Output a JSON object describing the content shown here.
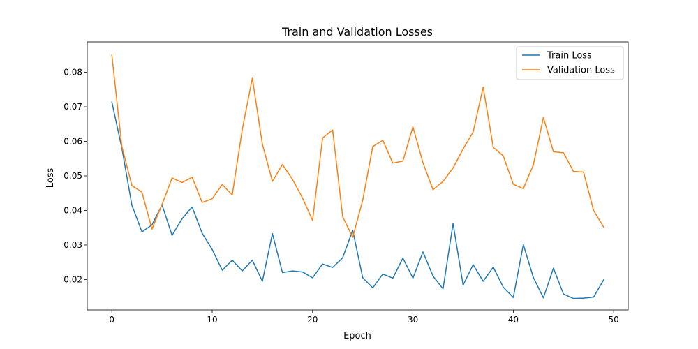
{
  "chart_data": {
    "type": "line",
    "title": "Train and Validation Losses",
    "xlabel": "Epoch",
    "ylabel": "Loss",
    "xlim": [
      -2.45,
      51.45
    ],
    "ylim": [
      0.0112,
      0.0888
    ],
    "xticks": [
      0,
      10,
      20,
      30,
      40,
      50
    ],
    "yticks": [
      0.02,
      0.03,
      0.04,
      0.05,
      0.06,
      0.07,
      0.08
    ],
    "xtick_labels": [
      "0",
      "10",
      "20",
      "30",
      "40",
      "50"
    ],
    "ytick_labels": [
      "0.02",
      "0.03",
      "0.04",
      "0.05",
      "0.06",
      "0.07",
      "0.08"
    ],
    "grid": false,
    "legend_position": "top-right",
    "x": [
      0,
      1,
      2,
      3,
      4,
      5,
      6,
      7,
      8,
      9,
      10,
      11,
      12,
      13,
      14,
      15,
      16,
      17,
      18,
      19,
      20,
      21,
      22,
      23,
      24,
      25,
      26,
      27,
      28,
      29,
      30,
      31,
      32,
      33,
      34,
      35,
      36,
      37,
      38,
      39,
      40,
      41,
      42,
      43,
      44,
      45,
      46,
      47,
      48,
      49
    ],
    "series": [
      {
        "name": "Train Loss",
        "color": "#1f77b4",
        "values": [
          0.0714,
          0.058,
          0.0415,
          0.0338,
          0.0358,
          0.0416,
          0.0328,
          0.0376,
          0.041,
          0.0334,
          0.0287,
          0.0227,
          0.0256,
          0.0225,
          0.0256,
          0.0195,
          0.0333,
          0.022,
          0.0225,
          0.0222,
          0.0205,
          0.0245,
          0.0235,
          0.0263,
          0.0343,
          0.0205,
          0.0176,
          0.0216,
          0.0204,
          0.0262,
          0.0204,
          0.028,
          0.021,
          0.0173,
          0.0362,
          0.0184,
          0.0243,
          0.0195,
          0.0236,
          0.0178,
          0.0148,
          0.0301,
          0.0206,
          0.0147,
          0.0233,
          0.0158,
          0.0145,
          0.0146,
          0.0149,
          0.0199
        ]
      },
      {
        "name": "Validation Loss",
        "color": "#ff7f0e",
        "values": [
          0.085,
          0.0585,
          0.0472,
          0.0453,
          0.0346,
          0.0417,
          0.0494,
          0.0481,
          0.0496,
          0.0423,
          0.0434,
          0.0475,
          0.0445,
          0.0635,
          0.0783,
          0.0592,
          0.0484,
          0.0533,
          0.049,
          0.0436,
          0.0371,
          0.061,
          0.0633,
          0.0382,
          0.0322,
          0.043,
          0.0585,
          0.0603,
          0.0537,
          0.0543,
          0.0642,
          0.0538,
          0.046,
          0.0484,
          0.0523,
          0.0578,
          0.0627,
          0.0757,
          0.0583,
          0.0558,
          0.0476,
          0.0463,
          0.0532,
          0.0669,
          0.057,
          0.0567,
          0.0513,
          0.0511,
          0.04,
          0.0352
        ]
      }
    ]
  }
}
